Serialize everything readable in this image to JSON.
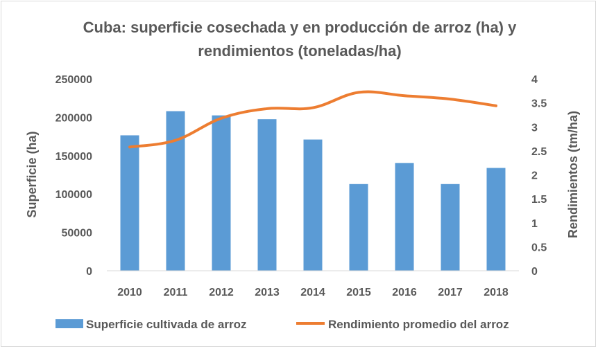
{
  "chart_data": {
    "type": "bar",
    "title_line1": "Cuba: superficie cosechada y en producción de arroz (ha) y",
    "title_line2": "rendimientos (toneladas/ha)",
    "categories": [
      "2010",
      "2011",
      "2012",
      "2013",
      "2014",
      "2015",
      "2016",
      "2017",
      "2018"
    ],
    "series": [
      {
        "name": "Superficie cultivada de arroz",
        "type": "bar",
        "axis": "left",
        "color": "#5b9bd5",
        "values": [
          176500,
          208000,
          202500,
          197500,
          171000,
          113000,
          140500,
          113000,
          134000
        ]
      },
      {
        "name": "Rendimiento promedio del arroz",
        "type": "line",
        "axis": "right",
        "color": "#ed7d31",
        "values": [
          2.58,
          2.72,
          3.18,
          3.38,
          3.4,
          3.72,
          3.65,
          3.58,
          3.44
        ]
      }
    ],
    "ylabel": "Superficie (ha)",
    "y2label": "Rendimientos (tm/ha)",
    "ylim": [
      0,
      250000
    ],
    "y2lim": [
      0,
      4
    ],
    "yticks": [
      "0",
      "50000",
      "100000",
      "150000",
      "200000",
      "250000"
    ],
    "y2ticks": [
      "0",
      "0.5",
      "1",
      "1.5",
      "2",
      "2.5",
      "3",
      "3.5",
      "4"
    ],
    "grid": false,
    "legend_position": "bottom"
  }
}
